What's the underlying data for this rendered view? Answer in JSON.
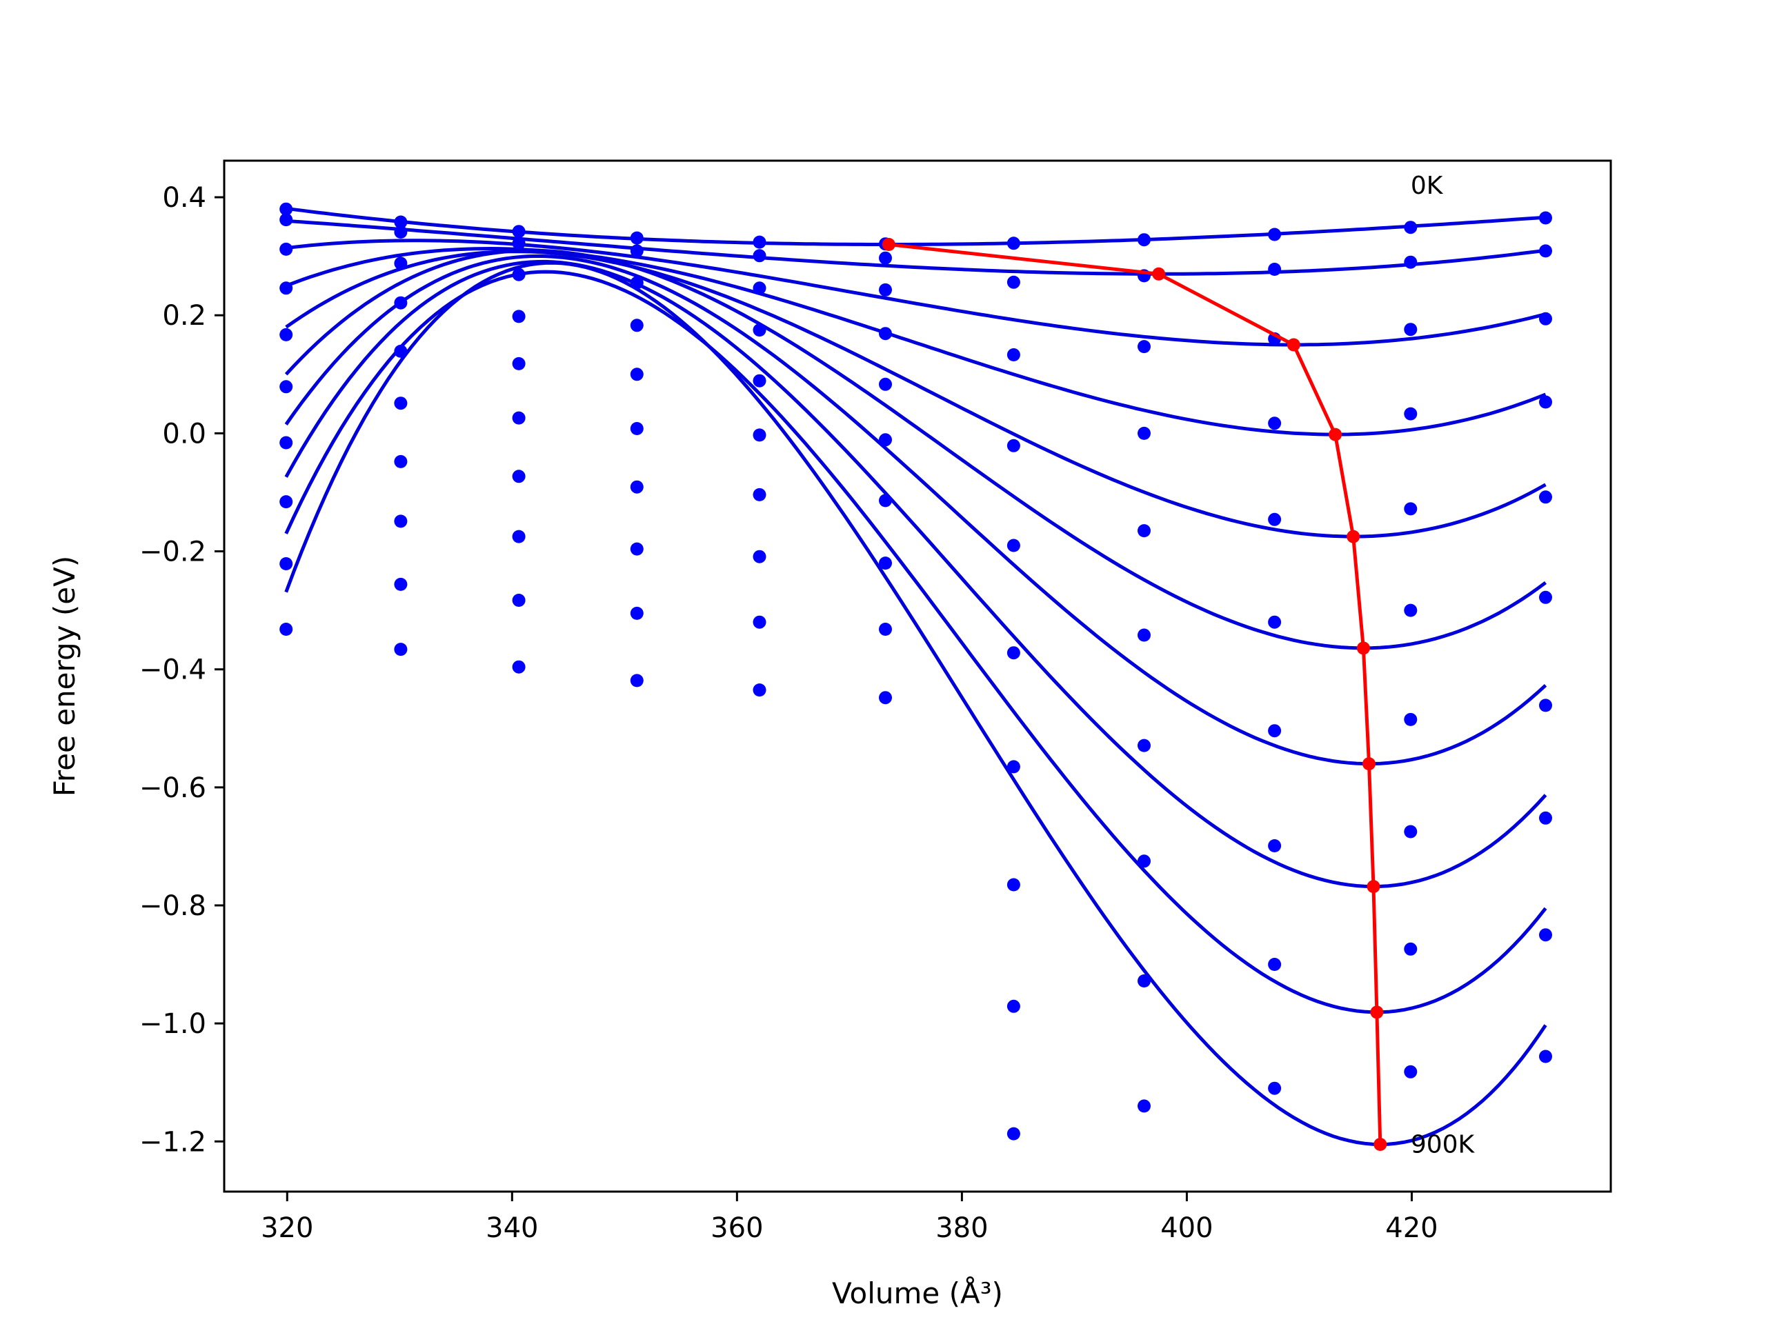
{
  "chart_data": {
    "type": "scatter",
    "title": "",
    "xlabel": "Volume (Å³)",
    "ylabel": "Free energy (eV)",
    "xlim": [
      314.4,
      437.7
    ],
    "ylim": [
      -1.285,
      0.462
    ],
    "xticks": [
      320,
      340,
      360,
      380,
      400,
      420
    ],
    "yticks": [
      0.4,
      0.2,
      0.0,
      -0.2,
      -0.4,
      -0.6,
      -0.8,
      -1.0,
      -1.2
    ],
    "xtick_labels": [
      "320",
      "340",
      "360",
      "380",
      "400",
      "420"
    ],
    "ytick_labels": [
      "0.4",
      "0.2",
      "0.0",
      "−0.2",
      "−0.4",
      "−0.6",
      "−0.8",
      "−1.0",
      "−1.2"
    ],
    "grid": false,
    "annotations": [
      {
        "text": "0K",
        "x": 419.9,
        "y": 0.42
      },
      {
        "text": "900K",
        "x": 419.9,
        "y": -1.205
      }
    ],
    "colors": {
      "points": "#0000ff",
      "fits": "#0000dd",
      "minima": "#ff0000"
    },
    "volumes": [
      319.9,
      330.1,
      340.6,
      351.1,
      362.0,
      373.2,
      384.6,
      396.2,
      407.8,
      419.9,
      431.9
    ],
    "points": [
      [
        0.38,
        0.358,
        0.342,
        0.331,
        0.324,
        0.321,
        0.322,
        0.328,
        0.337,
        0.349,
        0.365
      ],
      [
        0.362,
        0.341,
        0.322,
        0.309,
        0.301,
        0.297,
        0.256,
        0.267,
        0.278,
        0.29,
        0.309
      ],
      [
        0.312,
        0.288,
        0.269,
        0.255,
        0.246,
        0.243,
        0.133,
        0.147,
        0.16,
        0.176,
        0.194
      ],
      [
        0.246,
        0.221,
        0.198,
        0.183,
        0.175,
        0.169,
        -0.021,
        0.0,
        0.017,
        0.033,
        0.053
      ],
      [
        0.167,
        0.139,
        0.118,
        0.1,
        0.089,
        0.083,
        -0.19,
        -0.165,
        -0.146,
        -0.128,
        -0.108
      ],
      [
        0.079,
        0.051,
        0.026,
        0.008,
        -0.003,
        -0.011,
        -0.372,
        -0.342,
        -0.32,
        -0.3,
        -0.278
      ],
      [
        -0.016,
        -0.048,
        -0.073,
        -0.091,
        -0.104,
        -0.114,
        -0.565,
        -0.529,
        -0.504,
        -0.485,
        -0.461
      ],
      [
        -0.116,
        -0.149,
        -0.175,
        -0.196,
        -0.209,
        -0.22,
        -0.765,
        -0.725,
        -0.699,
        -0.675,
        -0.652
      ],
      [
        -0.221,
        -0.256,
        -0.283,
        -0.305,
        -0.32,
        -0.332,
        -0.971,
        -0.928,
        -0.9,
        -0.874,
        -0.85
      ],
      [
        -0.332,
        -0.366,
        -0.396,
        -0.419,
        -0.435,
        -0.448,
        -1.187,
        -1.14,
        -1.11,
        -1.082,
        -1.056
      ]
    ],
    "fit_curves": [
      {
        "V0": 373.5,
        "F0": 0.32,
        "fL": 0.381,
        "fR": 0.366
      },
      {
        "V0": 397.5,
        "F0": 0.27,
        "fL": 0.36,
        "fR": 0.31
      },
      {
        "V0": 409.5,
        "F0": 0.15,
        "fL": 0.314,
        "fR": 0.202
      },
      {
        "V0": 413.2,
        "F0": -0.002,
        "fL": 0.25,
        "fR": 0.066
      },
      {
        "V0": 414.8,
        "F0": -0.175,
        "fL": 0.18,
        "fR": -0.087
      },
      {
        "V0": 415.7,
        "F0": -0.364,
        "fL": 0.1,
        "fR": -0.253
      },
      {
        "V0": 416.2,
        "F0": -0.56,
        "fL": 0.015,
        "fR": -0.427
      },
      {
        "V0": 416.6,
        "F0": -0.768,
        "fL": -0.074,
        "fR": -0.613
      },
      {
        "V0": 416.9,
        "F0": -0.981,
        "fL": -0.17,
        "fR": -0.805
      },
      {
        "V0": 417.2,
        "F0": -1.205,
        "fL": -0.269,
        "fR": -1.003
      }
    ],
    "minima": [
      {
        "x": 373.5,
        "y": 0.32
      },
      {
        "x": 397.5,
        "y": 0.27
      },
      {
        "x": 409.5,
        "y": 0.15
      },
      {
        "x": 413.2,
        "y": -0.002
      },
      {
        "x": 414.8,
        "y": -0.175
      },
      {
        "x": 415.7,
        "y": -0.364
      },
      {
        "x": 416.2,
        "y": -0.56
      },
      {
        "x": 416.6,
        "y": -0.768
      },
      {
        "x": 416.9,
        "y": -0.981
      },
      {
        "x": 417.2,
        "y": -1.205
      }
    ]
  }
}
